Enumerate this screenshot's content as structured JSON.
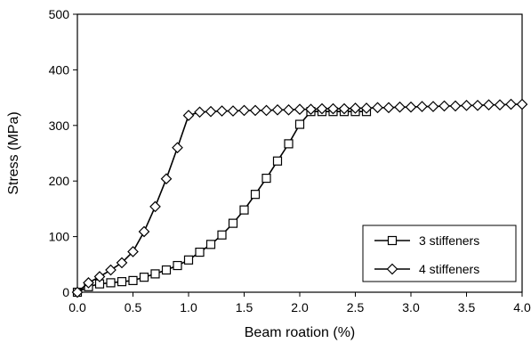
{
  "chart_data": {
    "type": "line",
    "xlabel": "Beam roation (%)",
    "ylabel": "Stress (MPa)",
    "xlim": [
      0,
      4.0
    ],
    "ylim": [
      0,
      500
    ],
    "xticks": [
      "0.0",
      "0.5",
      "1.0",
      "1.5",
      "2.0",
      "2.5",
      "3.0",
      "3.5",
      "4.0"
    ],
    "yticks": [
      "0",
      "100",
      "200",
      "300",
      "400",
      "500"
    ],
    "grid": false,
    "legend_position": "bottom-right",
    "series": [
      {
        "name": "3 stiffeners",
        "marker": "square",
        "color": "#000000",
        "x": [
          0.0,
          0.1,
          0.2,
          0.3,
          0.4,
          0.5,
          0.6,
          0.7,
          0.8,
          0.9,
          1.0,
          1.1,
          1.2,
          1.3,
          1.4,
          1.5,
          1.6,
          1.7,
          1.8,
          1.9,
          2.0,
          2.1,
          2.2,
          2.3,
          2.4,
          2.5,
          2.6
        ],
        "y": [
          0,
          10,
          15,
          17,
          19,
          21,
          27,
          33,
          40,
          48,
          58,
          72,
          86,
          103,
          124,
          148,
          176,
          205,
          236,
          267,
          302,
          325,
          325,
          325,
          325,
          325,
          325
        ]
      },
      {
        "name": "4 stiffeners",
        "marker": "diamond",
        "color": "#000000",
        "x": [
          0.0,
          0.1,
          0.2,
          0.3,
          0.4,
          0.5,
          0.6,
          0.7,
          0.8,
          0.9,
          1.0,
          1.1,
          1.2,
          1.3,
          1.4,
          1.5,
          1.6,
          1.7,
          1.8,
          1.9,
          2.0,
          2.1,
          2.2,
          2.3,
          2.4,
          2.5,
          2.6,
          2.7,
          2.8,
          2.9,
          3.0,
          3.1,
          3.2,
          3.3,
          3.4,
          3.5,
          3.6,
          3.7,
          3.8,
          3.9,
          4.0
        ],
        "y": [
          0,
          17,
          28,
          40,
          53,
          73,
          109,
          154,
          204,
          260,
          318,
          324,
          325,
          326,
          326,
          327,
          327,
          327,
          328,
          328,
          329,
          329,
          330,
          330,
          330,
          331,
          331,
          332,
          332,
          333,
          333,
          334,
          334,
          335,
          335,
          336,
          336,
          337,
          337,
          338,
          338
        ]
      }
    ]
  }
}
